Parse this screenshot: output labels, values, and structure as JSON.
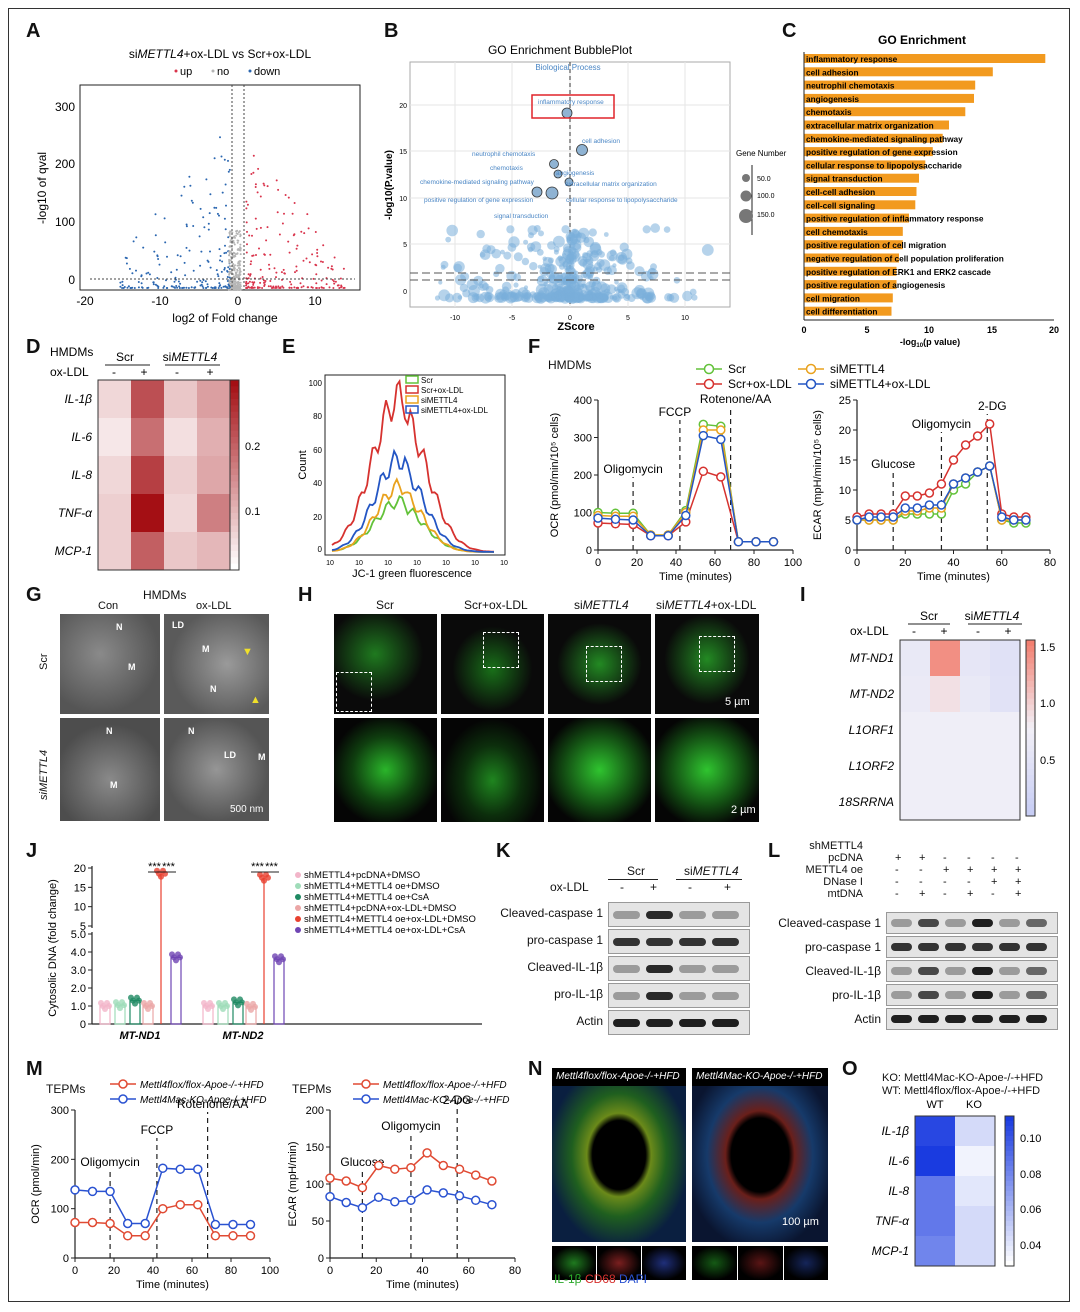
{
  "labels": [
    "A",
    "B",
    "C",
    "D",
    "E",
    "F",
    "G",
    "H",
    "I",
    "J",
    "K",
    "L",
    "M",
    "N",
    "O"
  ],
  "panelA": {
    "title_pre": "si",
    "title_gene": "METTL4",
    "title_post": "+ox-LDL vs Scr+ox-LDL",
    "legend": [
      "up",
      "no",
      "down"
    ],
    "colors": {
      "up": "#d9334b",
      "no": "#b5b5b5",
      "down": "#2a66b0"
    },
    "xlabel": "log2 of Fold change",
    "ylabel": "-log10 of qval",
    "xticks": [
      "-20",
      "-10",
      "0",
      "10"
    ],
    "yticks": [
      "0",
      "100",
      "200",
      "300"
    ]
  },
  "panelB": {
    "title": "GO Enrichment BubblePlot",
    "subtitle": "Biological Process",
    "xlabel": "ZScore",
    "ylabel": "-log10(P.value)",
    "xticks": [
      "-10",
      "-5",
      "0",
      "5",
      "10"
    ],
    "yticks": [
      "0",
      "5",
      "10",
      "15",
      "20"
    ],
    "legend_title": "Gene Number",
    "legend_values": [
      "50.0",
      "100.0",
      "150.0"
    ],
    "terms": [
      "inflammatory response",
      "cell adhesion",
      "neutrophil chemotaxis",
      "chemotaxis",
      "angiogenesis",
      "chemokine-mediated signaling pathway",
      "extracellular matrix organization",
      "positive regulation of gene expression",
      "cellular response to lipopolysaccharide",
      "signal transduction"
    ]
  },
  "panelC": {
    "title": "GO Enrichment",
    "xlabel_pre": "-log",
    "xlabel_sub": "10",
    "xlabel_post": "(p value)",
    "xticks": [
      "0",
      "5",
      "10",
      "15",
      "20"
    ],
    "bar_color": "#f29a1f"
  },
  "chart_data": [
    {
      "type": "bar",
      "orientation": "horizontal",
      "panel": "C",
      "title": "GO Enrichment",
      "xlabel": "-log10(p value)",
      "xlim": [
        0,
        20
      ],
      "categories": [
        "inflammatory response",
        "cell adhesion",
        "neutrophil chemotaxis",
        "angiogenesis",
        "chemotaxis",
        "extracellular matrix organization",
        "chemokine-mediated signaling pathway",
        "positive regulation of gene expression",
        "cellular response to lipopolysaccharide",
        "signal transduction",
        "cell-cell adhesion",
        "cell-cell signaling",
        "positive regulation of inflammatory response",
        "cell chemotaxis",
        "positive regulation of cell migration",
        "negative regulation of cell population proliferation",
        "positive regulation of ERK1 and ERK2 cascade",
        "positive regulation of angiogenesis",
        "cell migration",
        "cell differentiation"
      ],
      "values": [
        19.3,
        15.1,
        13.7,
        13.6,
        12.9,
        11.6,
        11.1,
        10.3,
        9.7,
        9.2,
        9.0,
        8.9,
        8.4,
        7.9,
        7.9,
        7.6,
        7.4,
        7.4,
        7.1,
        7.0
      ]
    },
    {
      "type": "line",
      "panel": "F-OCR",
      "ylabel": "OCR (pmol/min/10^5 cells)",
      "xlabel": "Time (minutes)",
      "xlim": [
        0,
        100
      ],
      "ylim": [
        0,
        400
      ],
      "x": [
        0,
        9,
        18,
        27,
        36,
        45,
        54,
        63,
        72,
        81,
        90
      ],
      "series": [
        {
          "name": "Scr",
          "color": "#63c23a",
          "values": [
            100,
            98,
            98,
            40,
            40,
            105,
            335,
            330,
            22,
            22,
            22
          ]
        },
        {
          "name": "Scr+ox-LDL",
          "color": "#d6322f",
          "values": [
            72,
            70,
            68,
            38,
            38,
            75,
            210,
            195,
            22,
            22,
            22
          ]
        },
        {
          "name": "siMETTL4",
          "color": "#e9a21e",
          "values": [
            92,
            90,
            90,
            40,
            40,
            100,
            320,
            320,
            22,
            22,
            22
          ]
        },
        {
          "name": "siMETTL4+ox-LDL",
          "color": "#2456c4",
          "values": [
            85,
            82,
            80,
            38,
            38,
            92,
            305,
            295,
            22,
            22,
            22
          ]
        }
      ],
      "events": [
        {
          "label": "Oligomycin",
          "x": 18
        },
        {
          "label": "FCCP",
          "x": 42
        },
        {
          "label": "Rotenone/AA",
          "x": 68
        }
      ]
    },
    {
      "type": "line",
      "panel": "F-ECAR",
      "ylabel": "ECAR (mpH/min/10^5 cells)",
      "xlabel": "Time (minutes)",
      "xlim": [
        0,
        80
      ],
      "ylim": [
        0,
        25
      ],
      "x": [
        0,
        5,
        10,
        15,
        20,
        25,
        30,
        35,
        40,
        45,
        50,
        55,
        60,
        65,
        70
      ],
      "series": [
        {
          "name": "Scr",
          "color": "#63c23a",
          "values": [
            5,
            5,
            5,
            5,
            6,
            6,
            6,
            6,
            10,
            11,
            13,
            14,
            5,
            4.5,
            4.5
          ]
        },
        {
          "name": "Scr+ox-LDL",
          "color": "#d6322f",
          "values": [
            5.5,
            6,
            6,
            6,
            9,
            9,
            9.5,
            11,
            15,
            17.5,
            19,
            21,
            6,
            5.5,
            5.5
          ]
        },
        {
          "name": "siMETTL4",
          "color": "#e9a21e",
          "values": [
            5,
            5,
            5,
            5,
            6.5,
            6.5,
            7,
            7,
            11,
            12,
            13,
            14,
            5,
            5,
            5
          ]
        },
        {
          "name": "siMETTL4+ox-LDL",
          "color": "#2456c4",
          "values": [
            5,
            5.5,
            5.5,
            5.5,
            7,
            7,
            7.5,
            7.5,
            11,
            12,
            13,
            14,
            5.5,
            5,
            5
          ]
        }
      ],
      "events": [
        {
          "label": "Glucose",
          "x": 15
        },
        {
          "label": "Oligomycin",
          "x": 35
        },
        {
          "label": "2-DG",
          "x": 54
        }
      ]
    },
    {
      "type": "line",
      "panel": "M-OCR",
      "ylabel": "OCR (pmol/min)",
      "xlabel": "Time (minutes)",
      "xlim": [
        0,
        100
      ],
      "ylim": [
        0,
        300
      ],
      "x": [
        0,
        9,
        18,
        27,
        36,
        45,
        54,
        63,
        72,
        81,
        90
      ],
      "series": [
        {
          "name": "Mettl4flox/flox-Apoe-/-+HFD",
          "color": "#e04a33",
          "values": [
            72,
            72,
            70,
            45,
            45,
            100,
            108,
            108,
            45,
            45,
            45
          ]
        },
        {
          "name": "Mettl4Mac-KO-Apoe-/-+HFD",
          "color": "#2a52d1",
          "values": [
            138,
            135,
            135,
            70,
            70,
            182,
            180,
            180,
            68,
            68,
            68
          ]
        }
      ],
      "events": [
        {
          "label": "Oligomycin",
          "x": 18
        },
        {
          "label": "FCCP",
          "x": 42
        },
        {
          "label": "Rotenone/AA",
          "x": 68
        }
      ]
    },
    {
      "type": "line",
      "panel": "M-ECAR",
      "ylabel": "ECAR (mpH/min)",
      "xlabel": "Time (minutes)",
      "xlim": [
        0,
        80
      ],
      "ylim": [
        0,
        200
      ],
      "x": [
        0,
        7,
        14,
        21,
        28,
        35,
        42,
        49,
        56,
        63,
        70
      ],
      "series": [
        {
          "name": "Mettl4flox/flox-Apoe-/-+HFD",
          "color": "#e04a33",
          "values": [
            108,
            104,
            95,
            125,
            120,
            122,
            142,
            125,
            120,
            112,
            104
          ]
        },
        {
          "name": "Mettl4Mac-KO-Apoe-/-+HFD",
          "color": "#2a52d1",
          "values": [
            83,
            75,
            68,
            82,
            76,
            78,
            92,
            88,
            84,
            78,
            72
          ]
        }
      ],
      "events": [
        {
          "label": "Glucose",
          "x": 14
        },
        {
          "label": "Oligomycin",
          "x": 35
        },
        {
          "label": "2-DG",
          "x": 55
        }
      ]
    },
    {
      "type": "heatmap",
      "panel": "D",
      "rows": [
        "IL-1β",
        "IL-6",
        "IL-8",
        "TNF-α",
        "MCP-1"
      ],
      "cols": [
        "Scr -",
        "Scr +",
        "siMETTL4 -",
        "siMETTL4 +"
      ],
      "values": [
        [
          0.05,
          0.22,
          0.07,
          0.12
        ],
        [
          0.03,
          0.18,
          0.04,
          0.1
        ],
        [
          0.05,
          0.24,
          0.06,
          0.11
        ],
        [
          0.06,
          0.3,
          0.05,
          0.16
        ],
        [
          0.06,
          0.2,
          0.07,
          0.09
        ]
      ],
      "scale": [
        0,
        0.3
      ],
      "colorbar_ticks": [
        "0.1",
        "0.2"
      ]
    },
    {
      "type": "heatmap",
      "panel": "I",
      "rows": [
        "MT-ND1",
        "MT-ND2",
        "L1ORF1",
        "L1ORF2",
        "18SRRNA"
      ],
      "cols": [
        "Scr -",
        "Scr +",
        "siMETTL4 -",
        "siMETTL4 +"
      ],
      "values": [
        [
          0.85,
          1.6,
          0.8,
          0.7
        ],
        [
          0.88,
          1.1,
          0.85,
          0.72
        ],
        [
          0.95,
          0.95,
          0.95,
          0.95
        ],
        [
          0.95,
          0.95,
          0.95,
          0.95
        ],
        [
          0.95,
          0.95,
          0.95,
          0.95
        ]
      ],
      "scale": [
        0.3,
        1.7
      ],
      "colorbar_ticks": [
        "0.5",
        "1.0",
        "1.5"
      ]
    },
    {
      "type": "heatmap",
      "panel": "O",
      "rows": [
        "IL-1β",
        "IL-6",
        "IL-8",
        "TNF-α",
        "MCP-1"
      ],
      "cols": [
        "WT",
        "KO"
      ],
      "values": [
        [
          0.105,
          0.045
        ],
        [
          0.11,
          0.035
        ],
        [
          0.085,
          0.04
        ],
        [
          0.085,
          0.045
        ],
        [
          0.08,
          0.045
        ]
      ],
      "scale": [
        0.03,
        0.11
      ],
      "colorbar_ticks": [
        "0.04",
        "0.06",
        "0.08",
        "0.10"
      ]
    },
    {
      "type": "scatter",
      "panel": "J",
      "ylabel": "Cytosolic DNA (fold change)",
      "categories": [
        "MT-ND1",
        "MT-ND2"
      ],
      "yticks": [
        "0",
        "1.0",
        "2.0",
        "3.0",
        "4.0",
        "5.0",
        "5",
        "10",
        "15",
        "20"
      ],
      "significance": "***",
      "series": [
        {
          "name": "shMETTL4+pcDNA+DMSO",
          "color": "#f2b5c9",
          "values": [
            1.0,
            1.0
          ]
        },
        {
          "name": "shMETTL4+METTL4 oe+DMSO",
          "color": "#9fdcb9",
          "values": [
            1.05,
            1.0
          ]
        },
        {
          "name": "shMETTL4+METTL4 oe+CsA",
          "color": "#1f8a63",
          "values": [
            1.3,
            1.2
          ]
        },
        {
          "name": "shMETTL4+pcDNA+ox-LDL+DMSO",
          "color": "#eba6a6",
          "values": [
            1.0,
            0.95
          ]
        },
        {
          "name": "shMETTL4+METTL4 oe+ox-LDL+DMSO",
          "color": "#e8402f",
          "values": [
            18.5,
            17.5
          ]
        },
        {
          "name": "shMETTL4+METTL4 oe+ox-LDL+CsA",
          "color": "#6f45b3",
          "values": [
            3.7,
            3.6
          ]
        }
      ]
    }
  ],
  "panelD": {
    "cell_line": "HMDMs",
    "oxldl": "ox-LDL",
    "groups": [
      "Scr",
      "si"
    ],
    "group_gene": "METTL4",
    "signs": [
      "-",
      "+",
      "-",
      "+"
    ],
    "low": "#ffffff",
    "high": "#a40f14"
  },
  "panelE": {
    "xlabel": "JC-1 green fluorescence",
    "ylabel": "Count",
    "yticks": [
      "0",
      "20",
      "40",
      "60",
      "80",
      "100"
    ],
    "legend": [
      "Scr",
      "Scr+ox-LDL",
      "siMETTL4",
      "siMETTL4+ox-LDL"
    ],
    "colors": [
      "#63c23a",
      "#d6322f",
      "#e9a21e",
      "#2456c4"
    ]
  },
  "panelF": {
    "cell_line": "HMDMs",
    "ocr_yticks": [
      "0",
      "100",
      "200",
      "300",
      "400"
    ],
    "ocr_xticks": [
      "0",
      "20",
      "40",
      "60",
      "80",
      "100"
    ],
    "ecar_yticks": [
      "0",
      "5",
      "10",
      "15",
      "20",
      "25"
    ],
    "ecar_xticks": [
      "0",
      "20",
      "40",
      "60",
      "80"
    ]
  },
  "panelG": {
    "title": "HMDMs",
    "cols": [
      "Con",
      "ox-LDL"
    ],
    "rows": [
      "Scr",
      "siMETTL4"
    ],
    "scalebar": "500 nm",
    "marks": [
      "N",
      "M",
      "LD"
    ]
  },
  "panelH": {
    "cols": [
      "Scr",
      "Scr+ox-LDL",
      "siMETTL4",
      "siMETTL4+ox-LDL"
    ],
    "scale_top": "5 µm",
    "scale_bottom": "2 µm"
  },
  "panelI": {
    "oxldl": "ox-LDL",
    "groups": [
      "Scr",
      "si"
    ],
    "group_gene": "METTL4",
    "signs": [
      "-",
      "+",
      "-",
      "+"
    ]
  },
  "panelJ": {
    "stars": "***"
  },
  "panelK": {
    "groups": [
      "Scr",
      "si"
    ],
    "group_gene": "METTL4",
    "oxldl": "ox-LDL",
    "signs": [
      "-",
      "+",
      "-",
      "+"
    ],
    "bands": [
      "Cleaved-caspase 1",
      "pro-caspase 1",
      "Cleaved-IL-1β",
      "pro-IL-1β",
      "Actin"
    ]
  },
  "panelL": {
    "rows": [
      {
        "label": "shMETTL4",
        "signs": []
      },
      {
        "label": "pcDNA",
        "signs": [
          "+",
          "+",
          "-",
          "-",
          "-",
          "-"
        ]
      },
      {
        "label": "METTL4 oe",
        "signs": [
          "-",
          "-",
          "+",
          "+",
          "+",
          "+"
        ]
      },
      {
        "label": "DNase I",
        "signs": [
          "-",
          "-",
          "-",
          "-",
          "+",
          "+"
        ]
      },
      {
        "label": "mtDNA",
        "signs": [
          "-",
          "+",
          "-",
          "+",
          "-",
          "+"
        ]
      }
    ],
    "bands": [
      "Cleaved-caspase 1",
      "pro-caspase 1",
      "Cleaved-IL-1β",
      "pro-IL-1β",
      "Actin"
    ]
  },
  "panelM": {
    "cell_line": "TEPMs",
    "ocr_yticks": [
      "0",
      "100",
      "200",
      "300"
    ],
    "ocr_xticks": [
      "0",
      "20",
      "40",
      "60",
      "80",
      "100"
    ],
    "ecar_yticks": [
      "0",
      "50",
      "100",
      "150",
      "200"
    ],
    "ecar_xticks": [
      "0",
      "20",
      "40",
      "60",
      "80"
    ]
  },
  "panelN": {
    "left_title": "Mettl4flox/flox-Apoe-/-+HFD",
    "right_title": "Mettl4Mac-KO-Apoe-/-+HFD",
    "scalebar": "100 µm",
    "stains": [
      "IL-1β",
      "CD68",
      "DAPI"
    ],
    "stain_colors": [
      "#2aa82a",
      "#d6322f",
      "#2a52d1"
    ]
  },
  "panelO": {
    "legend_ko": "KO: Mettl4Mac-KO-Apoe-/-+HFD",
    "legend_wt": "WT: Mettl4flox/flox-Apoe-/-+HFD",
    "high": "#1a3be0"
  }
}
